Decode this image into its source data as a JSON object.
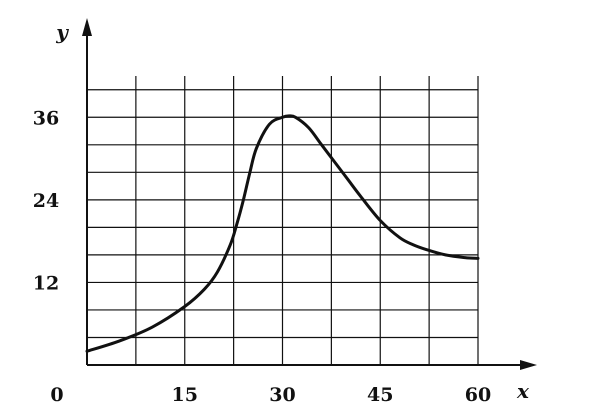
{
  "chart_data": {
    "type": "line",
    "title": "",
    "xlabel": "x",
    "ylabel": "y",
    "origin_label": "0",
    "xlim": [
      0,
      60
    ],
    "ylim": [
      0,
      42
    ],
    "x_ticks": [
      15,
      30,
      45,
      60
    ],
    "y_ticks": [
      12,
      24,
      36
    ],
    "x_grid_step": 7.5,
    "y_grid_step": 4,
    "grid": true,
    "series": [
      {
        "color": "#111111",
        "x": [
          0,
          5,
          10,
          15,
          18,
          20,
          22,
          23,
          24,
          25,
          26,
          28,
          30,
          31,
          32,
          34,
          36,
          38,
          40,
          42,
          45,
          48,
          50,
          52,
          55,
          58,
          60
        ],
        "y": [
          2,
          3.5,
          5.5,
          8.5,
          11,
          13.5,
          17.5,
          20.5,
          24,
          28,
          31.5,
          35,
          36,
          36.2,
          36,
          34.5,
          32,
          29.5,
          27,
          24.5,
          21,
          18.5,
          17.5,
          16.8,
          16,
          15.6,
          15.5
        ]
      }
    ]
  }
}
